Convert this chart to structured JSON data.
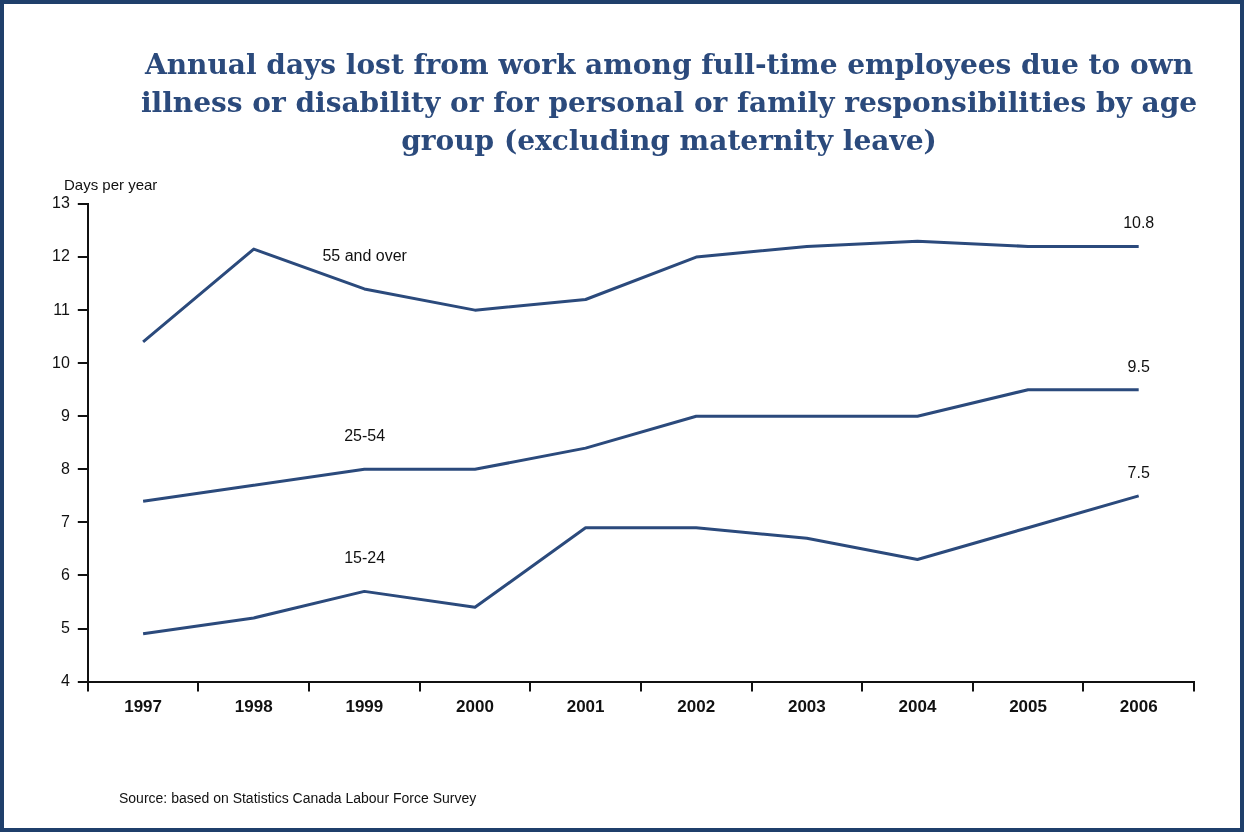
{
  "chart_data": {
    "type": "line",
    "title": "Annual days lost from work among full-time employees due to own illness or disability or for personal or family responsibilities by age group (excluding maternity leave)",
    "ylabel": "Days per year",
    "categories": [
      "1997",
      "1998",
      "1999",
      "2000",
      "2001",
      "2002",
      "2003",
      "2004",
      "2005",
      "2006"
    ],
    "series": [
      {
        "name": "55 and over",
        "color": "#2b4a7c",
        "values": [
          10.4,
          12.15,
          11.4,
          11.0,
          11.2,
          12.0,
          12.2,
          12.3,
          12.2,
          12.2
        ]
      },
      {
        "name": "25-54",
        "color": "#2b4a7c",
        "values": [
          7.4,
          7.7,
          8.0,
          8.0,
          8.4,
          9.0,
          9.0,
          9.0,
          9.5,
          9.5
        ],
        "value_labels": [
          null,
          null,
          null,
          null,
          null,
          null,
          null,
          null,
          null,
          "9.5"
        ]
      },
      {
        "name": "15-24",
        "color": "#2b4a7c",
        "values": [
          4.9,
          5.2,
          5.7,
          5.4,
          6.9,
          6.9,
          6.7,
          6.3,
          6.9,
          7.5
        ],
        "value_labels": [
          null,
          null,
          null,
          null,
          null,
          null,
          null,
          null,
          null,
          "7.5"
        ]
      }
    ],
    "ylim": [
      4,
      13
    ],
    "yticks": [
      4,
      5,
      6,
      7,
      8,
      9,
      10,
      11,
      12,
      13
    ],
    "grid": false,
    "legend": false,
    "marker": "none",
    "line_style": "solid",
    "annotations": [
      {
        "text": "10.8",
        "x": "2006",
        "y": 12.2
      },
      "Source: based on Statistics Canada Labour Force Survey"
    ]
  }
}
